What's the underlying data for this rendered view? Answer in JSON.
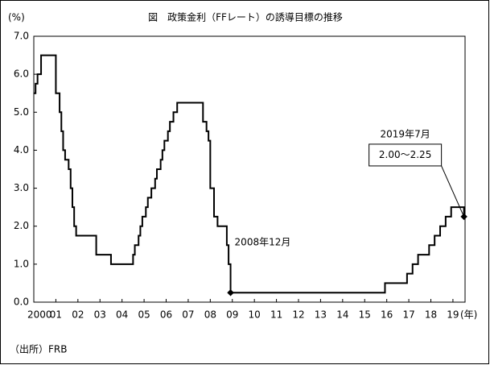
{
  "chart_data": {
    "type": "line",
    "title": "図　政策金利（FFレート）の誘導目標の推移",
    "y_label": "(%)",
    "x_label": "(年)",
    "source": "（出所）FRB",
    "xlim": [
      2000,
      2019.55
    ],
    "ylim": [
      0,
      7
    ],
    "xticks": [
      {
        "value": 2000,
        "label": "2000"
      },
      {
        "value": 2001,
        "label": "01"
      },
      {
        "value": 2002,
        "label": "02"
      },
      {
        "value": 2003,
        "label": "03"
      },
      {
        "value": 2004,
        "label": "04"
      },
      {
        "value": 2005,
        "label": "05"
      },
      {
        "value": 2006,
        "label": "06"
      },
      {
        "value": 2007,
        "label": "07"
      },
      {
        "value": 2008,
        "label": "08"
      },
      {
        "value": 2009,
        "label": "09"
      },
      {
        "value": 2010,
        "label": "10"
      },
      {
        "value": 2011,
        "label": "11"
      },
      {
        "value": 2012,
        "label": "12"
      },
      {
        "value": 2013,
        "label": "13"
      },
      {
        "value": 2014,
        "label": "14"
      },
      {
        "value": 2015,
        "label": "15"
      },
      {
        "value": 2016,
        "label": "16"
      },
      {
        "value": 2017,
        "label": "17"
      },
      {
        "value": 2018,
        "label": "18"
      },
      {
        "value": 2019,
        "label": "19"
      }
    ],
    "yticks": [
      {
        "value": 0,
        "label": "0.0"
      },
      {
        "value": 1,
        "label": "1.0"
      },
      {
        "value": 2,
        "label": "2.0"
      },
      {
        "value": 3,
        "label": "3.0"
      },
      {
        "value": 4,
        "label": "4.0"
      },
      {
        "value": 5,
        "label": "5.0"
      },
      {
        "value": 6,
        "label": "6.0"
      },
      {
        "value": 7,
        "label": "7.0"
      }
    ],
    "grid": false,
    "series": [
      {
        "color": "#000000",
        "x": [
          2000.0,
          2000.08,
          2000.08,
          2000.17,
          2000.17,
          2000.33,
          2000.33,
          2001.0,
          2001.0,
          2001.17,
          2001.17,
          2001.25,
          2001.25,
          2001.33,
          2001.33,
          2001.42,
          2001.42,
          2001.58,
          2001.58,
          2001.67,
          2001.67,
          2001.75,
          2001.75,
          2001.83,
          2001.83,
          2001.92,
          2001.92,
          2002.83,
          2002.83,
          2003.5,
          2003.5,
          2004.5,
          2004.5,
          2004.58,
          2004.58,
          2004.75,
          2004.75,
          2004.83,
          2004.83,
          2004.92,
          2004.92,
          2005.08,
          2005.08,
          2005.17,
          2005.17,
          2005.33,
          2005.33,
          2005.5,
          2005.5,
          2005.58,
          2005.58,
          2005.75,
          2005.75,
          2005.83,
          2005.83,
          2005.92,
          2005.92,
          2006.08,
          2006.08,
          2006.17,
          2006.17,
          2006.33,
          2006.33,
          2006.5,
          2006.5,
          2007.67,
          2007.67,
          2007.83,
          2007.83,
          2007.92,
          2007.92,
          2008.0,
          2008.0,
          2008.17,
          2008.17,
          2008.33,
          2008.33,
          2008.75,
          2008.75,
          2008.83,
          2008.83,
          2008.92,
          2008.92,
          2015.92,
          2015.92,
          2016.92,
          2016.92,
          2017.17,
          2017.17,
          2017.42,
          2017.42,
          2017.92,
          2017.92,
          2018.17,
          2018.17,
          2018.42,
          2018.42,
          2018.67,
          2018.67,
          2018.92,
          2018.92,
          2019.5,
          2019.5
        ],
        "values": [
          5.5,
          5.5,
          5.75,
          5.75,
          6.0,
          6.0,
          6.5,
          6.5,
          5.5,
          5.5,
          5.0,
          5.0,
          4.5,
          4.5,
          4.0,
          4.0,
          3.75,
          3.75,
          3.5,
          3.5,
          3.0,
          3.0,
          2.5,
          2.5,
          2.0,
          2.0,
          1.75,
          1.75,
          1.25,
          1.25,
          1.0,
          1.0,
          1.25,
          1.25,
          1.5,
          1.5,
          1.75,
          1.75,
          2.0,
          2.0,
          2.25,
          2.25,
          2.5,
          2.5,
          2.75,
          2.75,
          3.0,
          3.0,
          3.25,
          3.25,
          3.5,
          3.5,
          3.75,
          3.75,
          4.0,
          4.0,
          4.25,
          4.25,
          4.5,
          4.5,
          4.75,
          4.75,
          5.0,
          5.0,
          5.25,
          5.25,
          4.75,
          4.75,
          4.5,
          4.5,
          4.25,
          4.25,
          3.0,
          3.0,
          2.25,
          2.25,
          2.0,
          2.0,
          1.5,
          1.5,
          1.0,
          1.0,
          0.25,
          0.25,
          0.5,
          0.5,
          0.75,
          0.75,
          1.0,
          1.0,
          1.25,
          1.25,
          1.5,
          1.5,
          1.75,
          1.75,
          2.0,
          2.0,
          2.25,
          2.25,
          2.5,
          2.5,
          2.25
        ]
      }
    ],
    "annotations": [
      {
        "x": 2008.92,
        "y": 0.25,
        "text": "2008年12月"
      },
      {
        "x": 2019.5,
        "y": 2.25,
        "text": "2019年7月",
        "box": "2.00～2.25"
      }
    ]
  }
}
